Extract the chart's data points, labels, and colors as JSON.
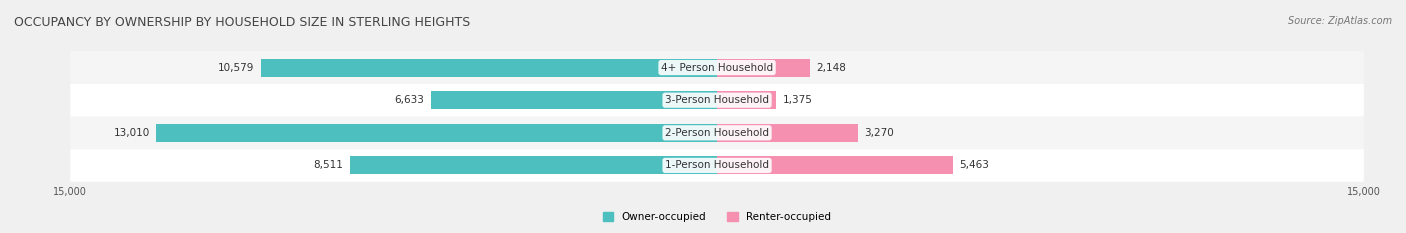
{
  "title": "OCCUPANCY BY OWNERSHIP BY HOUSEHOLD SIZE IN STERLING HEIGHTS",
  "source": "Source: ZipAtlas.com",
  "categories": [
    "1-Person Household",
    "2-Person Household",
    "3-Person Household",
    "4+ Person Household"
  ],
  "owner_values": [
    8511,
    13010,
    6633,
    10579
  ],
  "renter_values": [
    5463,
    3270,
    1375,
    2148
  ],
  "max_value": 15000,
  "owner_color": "#4DBFBF",
  "renter_color": "#F590B0",
  "owner_color_dark": "#2BA8A8",
  "renter_color_dark": "#F06090",
  "bg_color": "#f0f0f0",
  "bar_bg_color": "#e8e8e8",
  "title_fontsize": 9,
  "source_fontsize": 7,
  "label_fontsize": 7.5,
  "axis_label_fontsize": 7,
  "legend_fontsize": 7.5,
  "bar_height": 0.55,
  "row_bg_colors": [
    "#ffffff",
    "#f5f5f5",
    "#ffffff",
    "#f5f5f5"
  ]
}
